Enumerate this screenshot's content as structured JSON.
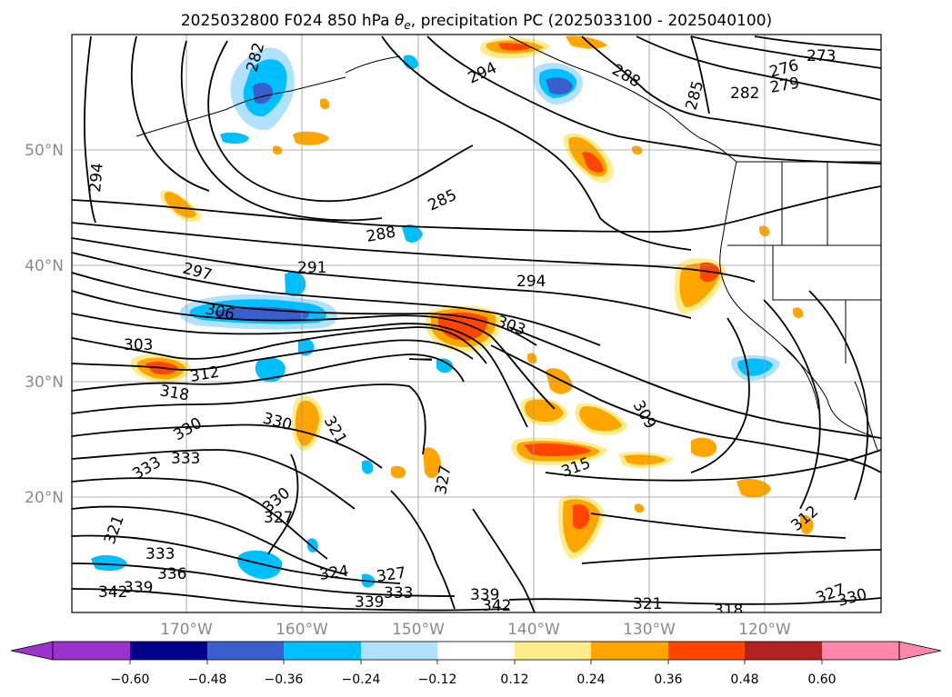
{
  "title": "2025032800 F024 850 hPa θe, precipitation PC (2025033100 - 2025040100)",
  "title_parts": {
    "prefix": "2025032800 F024 850 hPa ",
    "theta": "θ",
    "theta_sub": "e",
    "suffix": ", precipitation PC (2025033100 - 2025040100)"
  },
  "map": {
    "lon_range": [
      -180,
      -110
    ],
    "lat_range": [
      10,
      60
    ],
    "lon_labels": [
      "170°W",
      "160°W",
      "150°W",
      "140°W",
      "130°W",
      "120°W"
    ],
    "lat_labels": [
      "50°N",
      "40°N",
      "30°N",
      "20°N"
    ],
    "contour_labels": [
      "282",
      "294",
      "288",
      "285",
      "282",
      "273",
      "276",
      "279",
      "294",
      "285",
      "288",
      "291",
      "294",
      "297",
      "306",
      "303",
      "303",
      "312",
      "318",
      "309",
      "315",
      "321",
      "330",
      "330",
      "333",
      "333",
      "327",
      "330",
      "321",
      "327",
      "333",
      "336",
      "339",
      "342",
      "324",
      "327",
      "333",
      "339",
      "339",
      "342",
      "321",
      "318",
      "312",
      "327",
      "330"
    ]
  },
  "colorbar": {
    "ticks": [
      "−0.60",
      "−0.48",
      "−0.36",
      "−0.24",
      "−0.12",
      "0.12",
      "0.24",
      "0.36",
      "0.48",
      "0.60"
    ],
    "colors": [
      "#9933cc",
      "#00008b",
      "#3a5fcd",
      "#00bfff",
      "#b0e2ff",
      "#ffffff",
      "#ffec8b",
      "#ffa500",
      "#ff4500",
      "#b22222",
      "#ff88aa"
    ]
  }
}
